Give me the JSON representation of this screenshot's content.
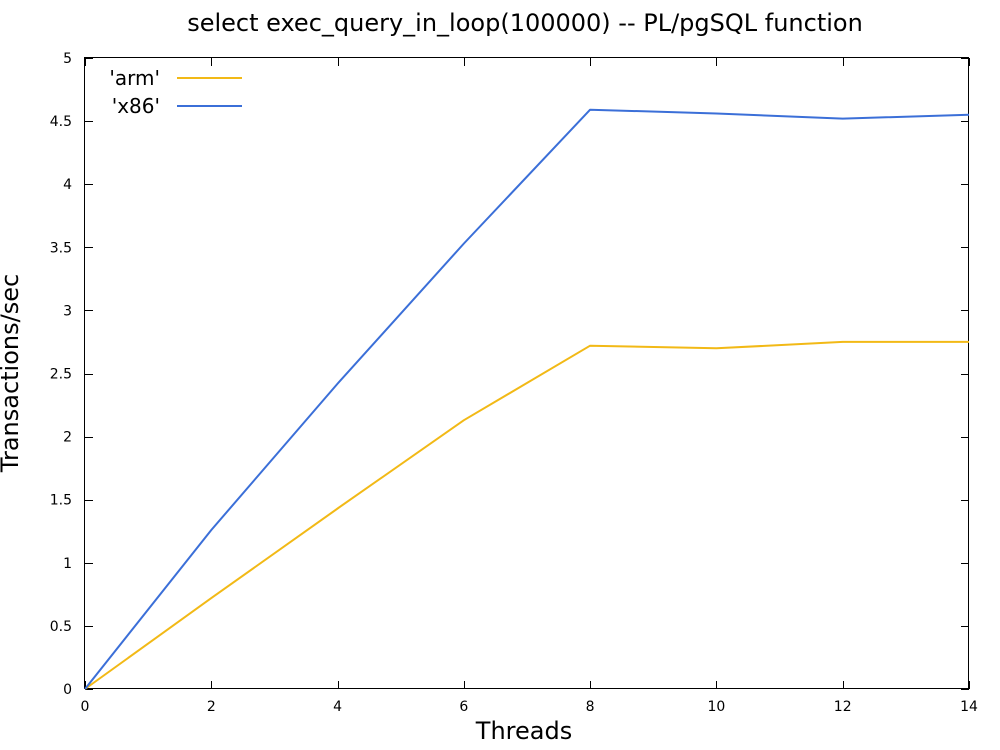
{
  "chart_data": {
    "type": "line",
    "title": "select exec_query_in_loop(100000) -- PL/pgSQL function",
    "xlabel": "Threads",
    "ylabel": "Transactions/sec",
    "xlim": [
      0,
      14
    ],
    "ylim": [
      0,
      5
    ],
    "xticks": [
      0,
      2,
      4,
      6,
      8,
      10,
      12,
      14
    ],
    "yticks": [
      0,
      0.5,
      1,
      1.5,
      2,
      2.5,
      3,
      3.5,
      4,
      4.5,
      5
    ],
    "grid": false,
    "legend_position": "top-left",
    "series": [
      {
        "name": "'arm'",
        "color": "#f2b916",
        "x": [
          0,
          2,
          4,
          6,
          8,
          10,
          12,
          14
        ],
        "values": [
          0,
          0.72,
          1.43,
          2.13,
          2.72,
          2.7,
          2.75,
          2.75
        ]
      },
      {
        "name": "'x86'",
        "color": "#3b6fd8",
        "x": [
          0,
          2,
          4,
          6,
          8,
          10,
          12,
          14
        ],
        "values": [
          0,
          1.26,
          2.42,
          3.53,
          4.59,
          4.56,
          4.52,
          4.55
        ]
      }
    ]
  }
}
